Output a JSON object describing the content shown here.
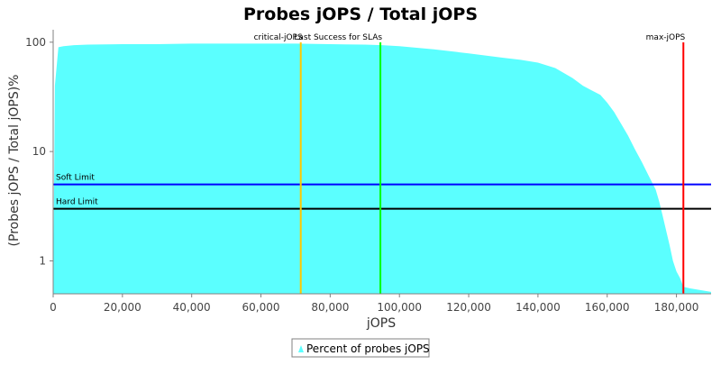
{
  "chart_data": {
    "type": "area",
    "title": "Probes jOPS / Total jOPS",
    "xlabel": "jOPS",
    "ylabel": "(Probes jOPS / Total jOPS)%",
    "x_scale": "linear",
    "y_scale": "log",
    "xlim": [
      0,
      190000
    ],
    "ylim": [
      0.5,
      130
    ],
    "x_ticks": [
      0,
      20000,
      40000,
      60000,
      80000,
      100000,
      120000,
      140000,
      160000,
      180000
    ],
    "x_tick_labels": [
      "0",
      "20,000",
      "40,000",
      "60,000",
      "80,000",
      "100,000",
      "120,000",
      "140,000",
      "160,000",
      "180,000"
    ],
    "y_ticks": [
      1,
      10,
      100
    ],
    "y_tick_labels": [
      "1",
      "10",
      "100"
    ],
    "grid": false,
    "legend_position": "bottom",
    "series": [
      {
        "name": "Percent of probes jOPS",
        "color": "#5BFFFF",
        "x": [
          0,
          500,
          1500,
          3000,
          6000,
          10000,
          20000,
          30000,
          40000,
          50000,
          60000,
          70000,
          80000,
          90000,
          95000,
          100000,
          110000,
          120000,
          130000,
          135000,
          140000,
          145000,
          150000,
          153000,
          155000,
          158000,
          160000,
          162000,
          164000,
          166000,
          168000,
          170000,
          172000,
          174000,
          175000,
          176000,
          177000,
          178000,
          179000,
          180000,
          181000,
          182000,
          184000,
          190000
        ],
        "y": [
          0.5,
          40,
          90,
          92,
          94,
          95,
          96,
          96,
          97,
          97,
          97,
          97,
          96,
          95,
          94,
          92,
          86,
          79,
          72,
          69,
          65,
          58,
          47,
          40,
          37,
          33,
          28,
          23,
          18,
          14,
          10.5,
          8,
          6,
          4.5,
          3.5,
          2.6,
          1.9,
          1.4,
          1.0,
          0.8,
          0.7,
          0.58,
          0.56,
          0.52
        ]
      }
    ],
    "vertical_markers": [
      {
        "label": "critical-jOPS",
        "x": 71500,
        "color": "#FFC800"
      },
      {
        "label": "Last Success for SLAs",
        "x": 94500,
        "color": "#00FF00"
      },
      {
        "label": "max-jOPS",
        "x": 182000,
        "color": "#FF0000"
      }
    ],
    "horizontal_markers": [
      {
        "label": "Soft Limit",
        "y": 5,
        "color": "#0000FF"
      },
      {
        "label": "Hard Limit",
        "y": 3,
        "color": "#000000"
      }
    ]
  }
}
